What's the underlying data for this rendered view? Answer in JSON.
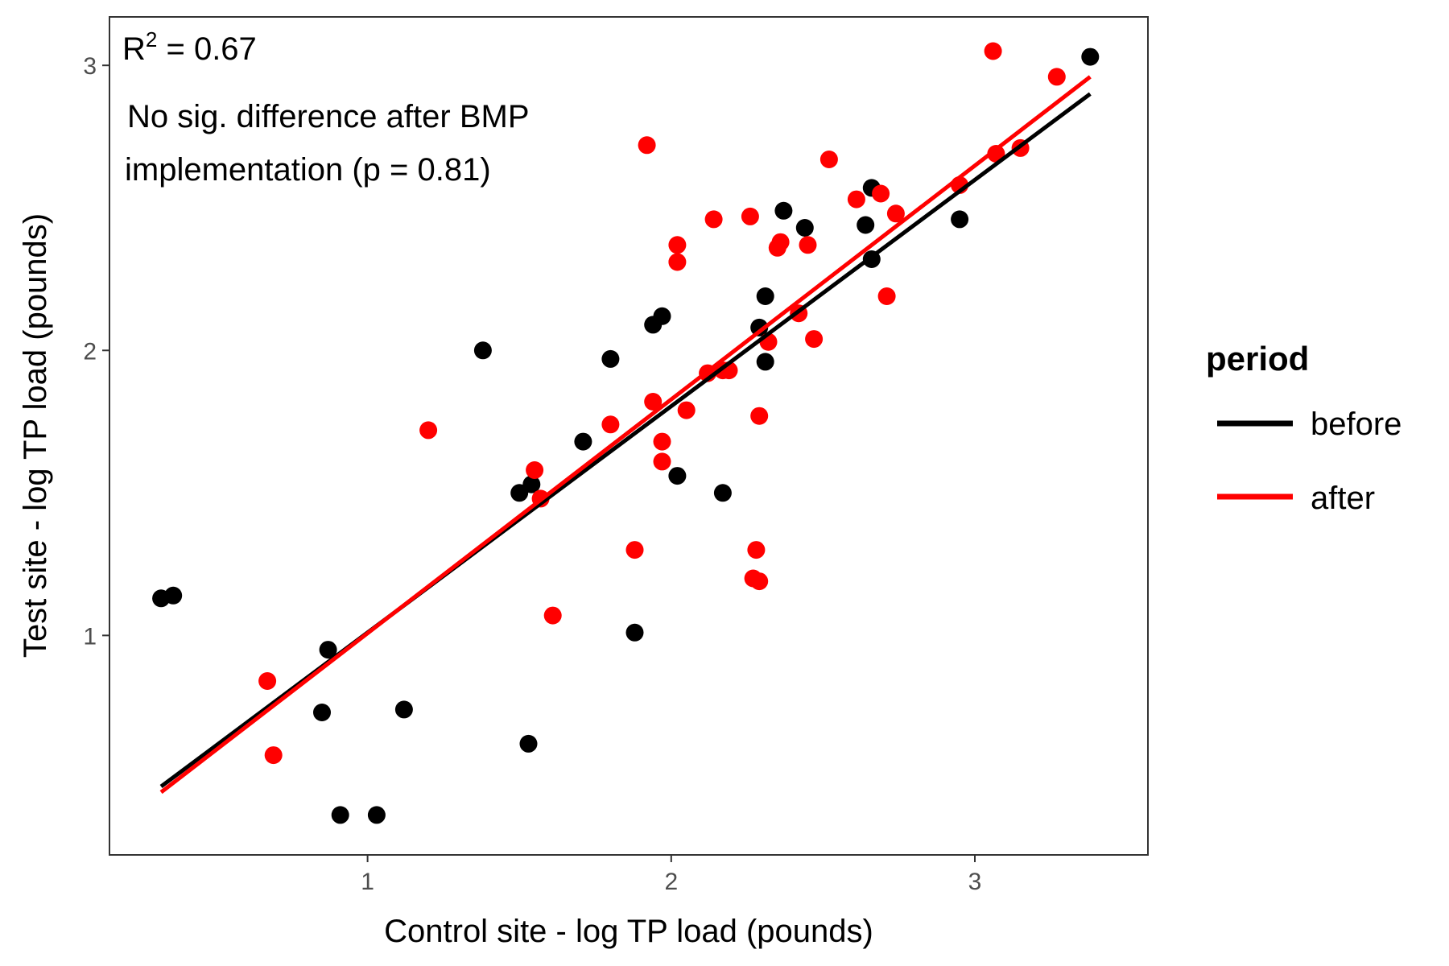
{
  "chart_data": {
    "type": "scatter",
    "xlabel": "Control site - log TP load (pounds)",
    "ylabel": "Test site - log TP load (pounds)",
    "xlim": [
      0.15,
      3.57
    ],
    "ylim": [
      0.23,
      3.17
    ],
    "xticks": [
      1,
      2,
      3
    ],
    "yticks": [
      1,
      2,
      3
    ],
    "grid": false,
    "annotations": {
      "r2_label": "R",
      "r2_sup": "2",
      "r2_value": " = 0.67",
      "line1": "No sig. difference after BMP",
      "line2": "implementation (p = 0.81)"
    },
    "legend": {
      "title": "period",
      "position": "right",
      "entries": [
        {
          "label": "before",
          "color": "#000000"
        },
        {
          "label": "after",
          "color": "#ff0000"
        }
      ]
    },
    "series": [
      {
        "name": "before",
        "color": "#000000",
        "fit": {
          "x": [
            0.32,
            3.38
          ],
          "y": [
            0.47,
            2.9
          ]
        },
        "points": [
          [
            0.32,
            1.13
          ],
          [
            0.36,
            1.14
          ],
          [
            0.87,
            0.95
          ],
          [
            0.85,
            0.73
          ],
          [
            0.91,
            0.37
          ],
          [
            1.03,
            0.37
          ],
          [
            1.12,
            0.74
          ],
          [
            1.38,
            2.0
          ],
          [
            1.5,
            1.5
          ],
          [
            1.54,
            1.53
          ],
          [
            1.53,
            0.62
          ],
          [
            1.71,
            1.68
          ],
          [
            1.8,
            1.97
          ],
          [
            1.88,
            1.01
          ],
          [
            1.94,
            2.09
          ],
          [
            1.97,
            2.12
          ],
          [
            2.02,
            1.56
          ],
          [
            2.17,
            1.5
          ],
          [
            2.29,
            2.08
          ],
          [
            2.31,
            2.19
          ],
          [
            2.31,
            1.96
          ],
          [
            2.37,
            2.49
          ],
          [
            2.44,
            2.43
          ],
          [
            2.64,
            2.44
          ],
          [
            2.66,
            2.57
          ],
          [
            2.66,
            2.32
          ],
          [
            2.95,
            2.46
          ],
          [
            3.38,
            3.03
          ]
        ]
      },
      {
        "name": "after",
        "color": "#ff0000",
        "fit": {
          "x": [
            0.32,
            3.38
          ],
          "y": [
            0.45,
            2.96
          ]
        },
        "points": [
          [
            0.67,
            0.84
          ],
          [
            0.69,
            0.58
          ],
          [
            1.2,
            1.72
          ],
          [
            1.55,
            1.58
          ],
          [
            1.57,
            1.48
          ],
          [
            1.61,
            1.07
          ],
          [
            1.8,
            1.74
          ],
          [
            1.88,
            1.3
          ],
          [
            1.92,
            2.72
          ],
          [
            1.94,
            1.82
          ],
          [
            1.97,
            1.68
          ],
          [
            1.97,
            1.61
          ],
          [
            2.02,
            2.37
          ],
          [
            2.02,
            2.31
          ],
          [
            2.05,
            1.79
          ],
          [
            2.12,
            1.92
          ],
          [
            2.14,
            2.46
          ],
          [
            2.17,
            1.93
          ],
          [
            2.19,
            1.93
          ],
          [
            2.26,
            2.47
          ],
          [
            2.27,
            1.2
          ],
          [
            2.28,
            1.3
          ],
          [
            2.29,
            1.19
          ],
          [
            2.29,
            1.77
          ],
          [
            2.32,
            2.03
          ],
          [
            2.35,
            2.36
          ],
          [
            2.36,
            2.38
          ],
          [
            2.42,
            2.13
          ],
          [
            2.45,
            2.37
          ],
          [
            2.47,
            2.04
          ],
          [
            2.52,
            2.67
          ],
          [
            2.61,
            2.53
          ],
          [
            2.69,
            2.55
          ],
          [
            2.71,
            2.19
          ],
          [
            2.74,
            2.48
          ],
          [
            2.95,
            2.58
          ],
          [
            3.06,
            3.05
          ],
          [
            3.07,
            2.69
          ],
          [
            3.15,
            2.71
          ],
          [
            3.27,
            2.96
          ]
        ]
      }
    ]
  }
}
